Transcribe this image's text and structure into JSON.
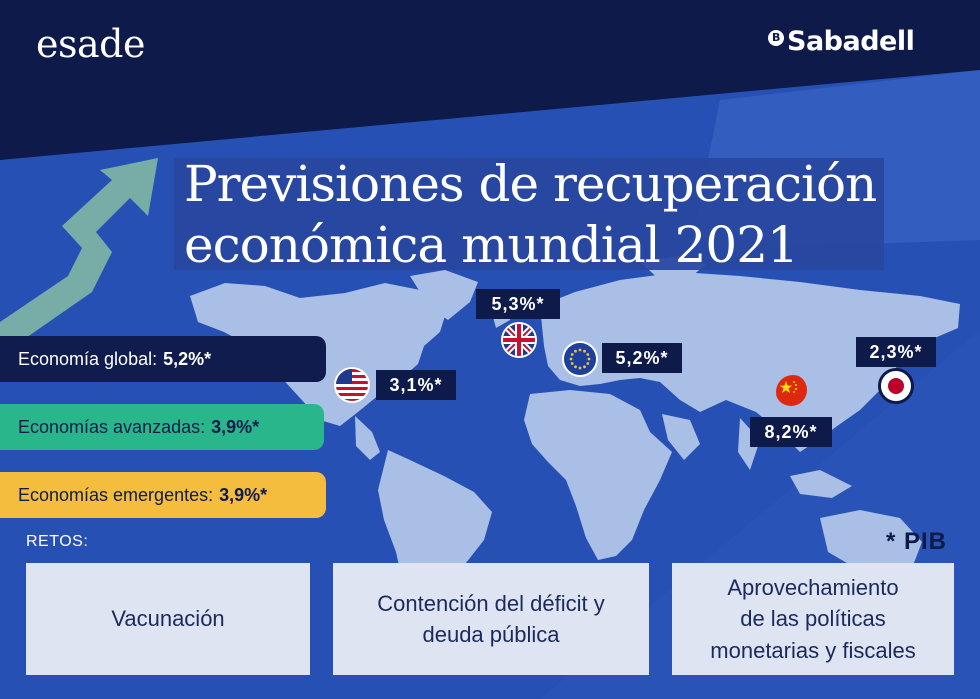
{
  "brand": {
    "left_logo": "esade",
    "right_logo": "Sabadell",
    "right_logo_mark": "B"
  },
  "title": {
    "line1": "Previsiones de recuperación",
    "line2": "económica mundial 2021"
  },
  "summary": {
    "global": {
      "label": "Economía global:",
      "value": "5,2%*"
    },
    "advanced": {
      "label": "Economías avanzadas:",
      "value": "3,9%*"
    },
    "emerging": {
      "label": "Economías emergentes:",
      "value": "3,9%*"
    }
  },
  "regions": {
    "usa": {
      "value": "3,1%*",
      "flag_icon": "usa-flag-icon"
    },
    "uk": {
      "value": "5,3%*",
      "flag_icon": "uk-flag-icon"
    },
    "eu": {
      "value": "5,2%*",
      "flag_icon": "eu-flag-icon"
    },
    "china": {
      "value": "8,2%*",
      "flag_icon": "china-flag-icon"
    },
    "japan": {
      "value": "2,3%*",
      "flag_icon": "japan-flag-icon"
    }
  },
  "retos": {
    "label": "RETOS:",
    "items": [
      {
        "lines": [
          "Vacunación"
        ]
      },
      {
        "lines": [
          "Contención del déficit y",
          "deuda pública"
        ]
      },
      {
        "lines": [
          "Aprovechamiento",
          "de las políticas",
          "monetarias y fiscales"
        ]
      }
    ]
  },
  "footnote": "* PIB",
  "colors": {
    "navy": "#0e1a4a",
    "blue": "#2447a6",
    "green": "#29b68a",
    "yellow": "#f4bd3d",
    "card": "#dfe4f2",
    "map": "#a9bfe6",
    "arrow": "#7fb5a6"
  }
}
